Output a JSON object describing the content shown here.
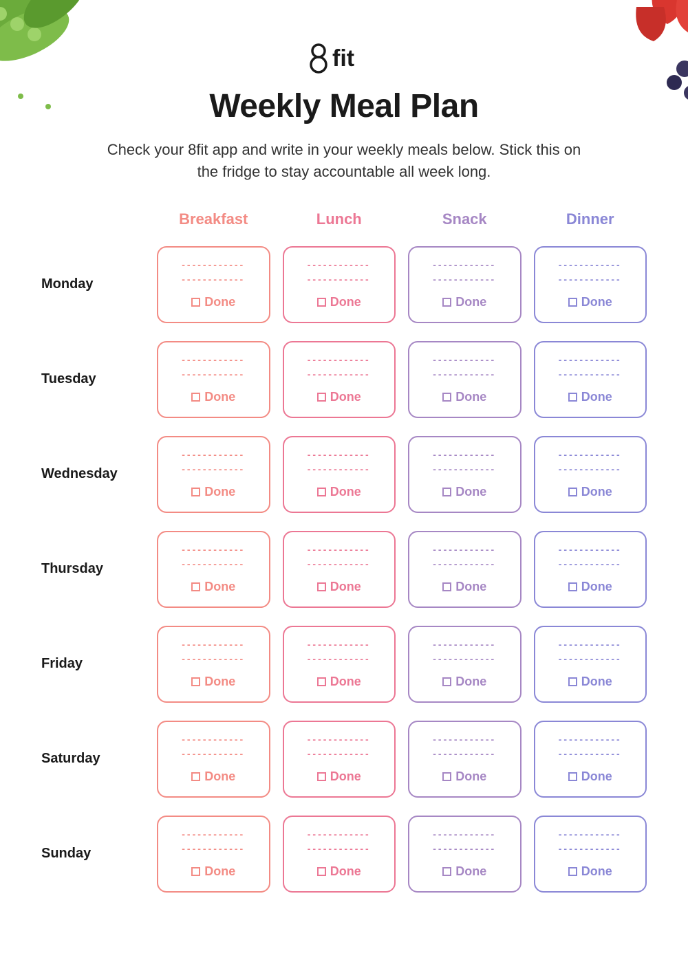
{
  "brand": "fit",
  "title": "Weekly Meal Plan",
  "subtitle": "Check your 8fit app and write in your weekly meals below. Stick this on the fridge to stay accountable all week long.",
  "columns": [
    {
      "label": "Breakfast",
      "color": "#f38b84"
    },
    {
      "label": "Lunch",
      "color": "#ec7794"
    },
    {
      "label": "Snack",
      "color": "#a687c4"
    },
    {
      "label": "Dinner",
      "color": "#8a87d6"
    }
  ],
  "days": [
    "Monday",
    "Tuesday",
    "Wednesday",
    "Thursday",
    "Friday",
    "Saturday",
    "Sunday"
  ],
  "cell": {
    "placeholder": "------------",
    "done_label": "Done"
  },
  "styling": {
    "page_bg": "#ffffff",
    "title_color": "#1a1a1a",
    "title_fontsize": 48,
    "subtitle_fontsize": 22,
    "day_label_fontsize": 20,
    "col_header_fontsize": 22,
    "cell_border_radius": 14,
    "cell_border_width": 2,
    "done_fontsize": 18
  },
  "decor": {
    "top_left": "green-peas",
    "top_right": "strawberries-blueberries"
  }
}
